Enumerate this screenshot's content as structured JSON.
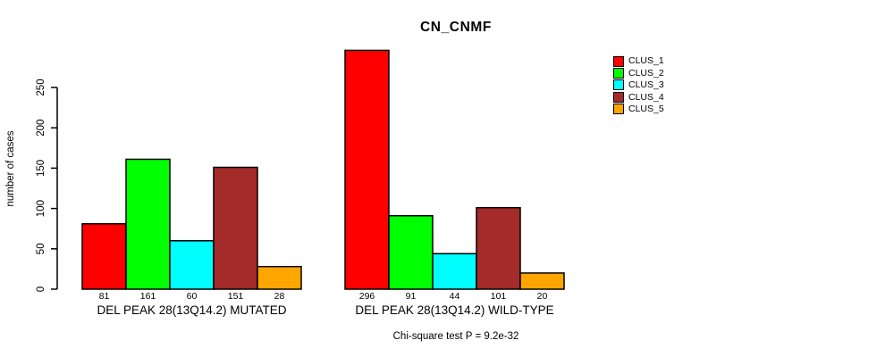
{
  "title": "CN_CNMF",
  "chart_data": {
    "type": "bar",
    "title": "CN_CNMF",
    "xlabel": "",
    "ylabel": "number of cases",
    "y_ticks": [
      0,
      50,
      100,
      150,
      200,
      250
    ],
    "axis_range": [
      0,
      250
    ],
    "grid": false,
    "legend_position": "right",
    "bar_value_labels_shown": true,
    "series": [
      {
        "name": "CLUS_1",
        "color": "#FF0000"
      },
      {
        "name": "CLUS_2",
        "color": "#00FF00"
      },
      {
        "name": "CLUS_3",
        "color": "#00FFFF"
      },
      {
        "name": "CLUS_4",
        "color": "#A52A2A"
      },
      {
        "name": "CLUS_5",
        "color": "#FFA500"
      }
    ],
    "groups": [
      {
        "label": "DEL PEAK 28(13Q14.2) MUTATED",
        "values": [
          81,
          161,
          60,
          151,
          28
        ]
      },
      {
        "label": "DEL PEAK 28(13Q14.2) WILD-TYPE",
        "values": [
          296,
          91,
          44,
          101,
          20
        ]
      }
    ],
    "annotation": "Chi-square test P = 9.2e-32"
  },
  "colors": {
    "background": "#FFFFFF",
    "axis": "#000000",
    "bar_border": "#000000"
  }
}
